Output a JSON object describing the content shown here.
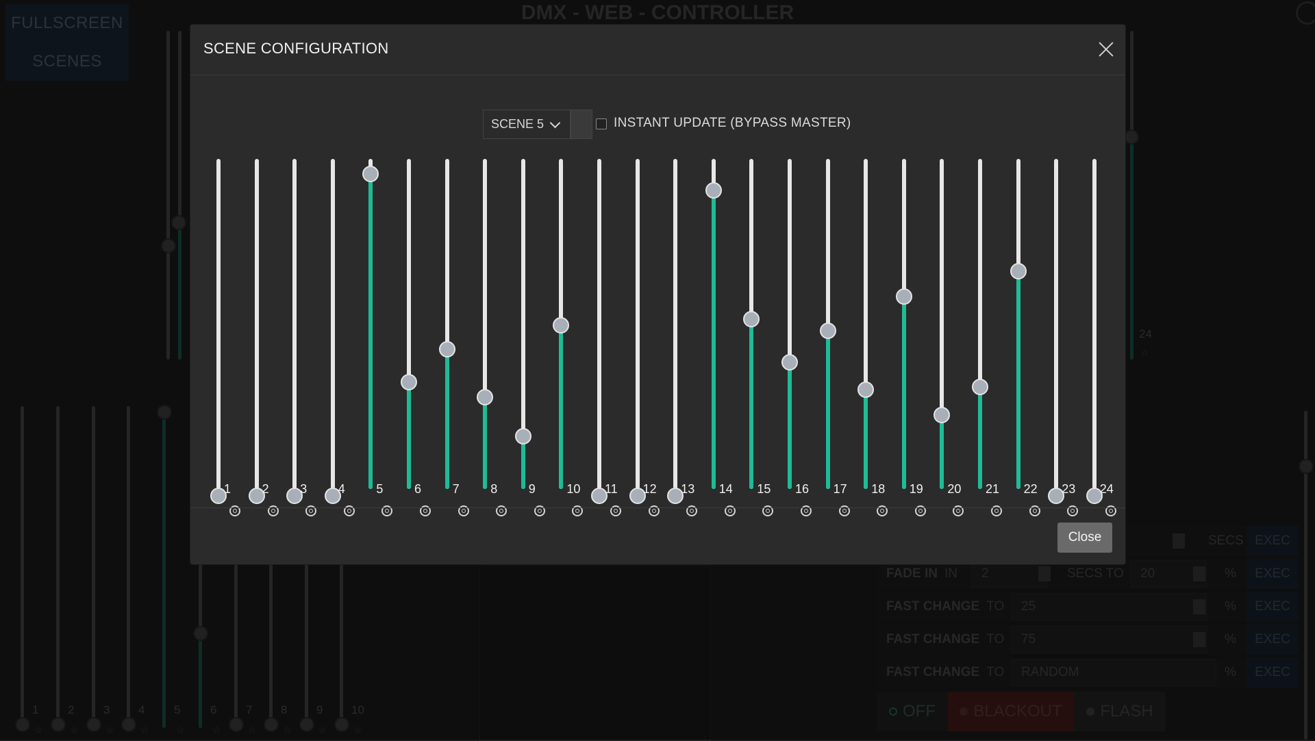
{
  "app": {
    "title": "DMX - WEB - CONTROLLER",
    "fullscreen_label": "FULLSCREEN",
    "scenes_label": "SCENES"
  },
  "background": {
    "upper_channel_label": "24",
    "lower_channels": [
      "1",
      "2",
      "3",
      "4",
      "5",
      "6",
      "7",
      "8",
      "9",
      "10"
    ],
    "controls": [
      {
        "label": "",
        "sub": "",
        "value": "",
        "unit": "SECS",
        "exec": "EXEC"
      },
      {
        "label": "FADE IN",
        "sub": "IN",
        "value": "2",
        "mid": "SECS TO",
        "value2": "20",
        "unit": "%",
        "exec": "EXEC"
      },
      {
        "label": "FAST CHANGE",
        "sub": "TO",
        "value": "25",
        "unit": "%",
        "exec": "EXEC"
      },
      {
        "label": "FAST CHANGE",
        "sub": "TO",
        "value": "75",
        "unit": "%",
        "exec": "EXEC"
      },
      {
        "label": "FAST CHANGE",
        "sub": "TO",
        "value": "RANDOM",
        "unit": "%",
        "exec": "EXEC"
      }
    ],
    "modes": {
      "off": "OFF",
      "blackout": "BLACKOUT",
      "flash": "FLASH"
    }
  },
  "modal": {
    "title": "SCENE CONFIGURATION",
    "scene_select": "SCENE 5",
    "instant_update_label": "INSTANT UPDATE (BYPASS MASTER)",
    "close_label": "Close",
    "channels": [
      {
        "label": "1",
        "value": 0
      },
      {
        "label": "2",
        "value": 0
      },
      {
        "label": "3",
        "value": 0
      },
      {
        "label": "4",
        "value": 0
      },
      {
        "label": "5",
        "value": 255
      },
      {
        "label": "6",
        "value": 90
      },
      {
        "label": "7",
        "value": 116
      },
      {
        "label": "8",
        "value": 78
      },
      {
        "label": "9",
        "value": 47
      },
      {
        "label": "10",
        "value": 135
      },
      {
        "label": "11",
        "value": 0
      },
      {
        "label": "12",
        "value": 0
      },
      {
        "label": "13",
        "value": 0
      },
      {
        "label": "14",
        "value": 242
      },
      {
        "label": "15",
        "value": 140
      },
      {
        "label": "16",
        "value": 106
      },
      {
        "label": "17",
        "value": 131
      },
      {
        "label": "18",
        "value": 84
      },
      {
        "label": "19",
        "value": 158
      },
      {
        "label": "20",
        "value": 64
      },
      {
        "label": "21",
        "value": 86
      },
      {
        "label": "22",
        "value": 178
      },
      {
        "label": "23",
        "value": 0
      },
      {
        "label": "24",
        "value": 0
      }
    ],
    "max_value": 255
  },
  "colors": {
    "fill": "#1ebc96",
    "blackout": "#4a1c1c"
  }
}
